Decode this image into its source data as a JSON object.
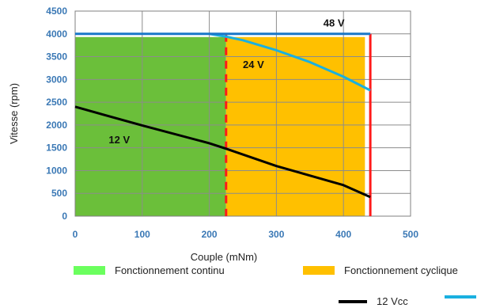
{
  "chart_data": {
    "type": "line",
    "xlabel": "Couple (mNm)",
    "ylabel": "Vitesse (rpm)",
    "xlim": [
      0,
      500
    ],
    "ylim": [
      0,
      4500
    ],
    "xticks": [
      0,
      100,
      200,
      300,
      400,
      500
    ],
    "yticks": [
      0,
      500,
      1000,
      1500,
      2000,
      2500,
      3000,
      3500,
      4000,
      4500
    ],
    "grid": true,
    "regions": [
      {
        "label": "Fonctionnement continu",
        "x": [
          0,
          225
        ],
        "y": [
          0,
          3930
        ],
        "color": "#6bbf3a"
      },
      {
        "label": "Fonctionnement cyclique",
        "x": [
          225,
          432
        ],
        "y": [
          0,
          3930
        ],
        "color": "#ffc000"
      }
    ],
    "limits": [
      {
        "x": 225,
        "style": "dashed",
        "color": "#ff1a1a"
      },
      {
        "x": 440,
        "style": "solid",
        "color": "#ff1a1a"
      }
    ],
    "series": [
      {
        "name": "12 Vcc",
        "label": "12 V",
        "color": "#000000",
        "x": [
          0,
          100,
          200,
          225,
          300,
          400,
          440
        ],
        "y": [
          2400,
          1990,
          1600,
          1480,
          1100,
          680,
          420
        ]
      },
      {
        "label": "24 V",
        "color": "#1ab0e0",
        "x": [
          200,
          225,
          250,
          300,
          350,
          400,
          440
        ],
        "y": [
          4000,
          3940,
          3860,
          3640,
          3380,
          3060,
          2760
        ]
      },
      {
        "label": "48 V",
        "color": "#1a78c8",
        "x": [
          0,
          100,
          200,
          300,
          400,
          440
        ],
        "y": [
          4000,
          4000,
          4000,
          4000,
          4000,
          4000
        ]
      }
    ],
    "annotations": [
      {
        "text": "48 V",
        "x": 370,
        "y": 4160
      },
      {
        "text": "24 V",
        "x": 250,
        "y": 3250
      },
      {
        "text": "12 V",
        "x": 50,
        "y": 1600
      }
    ],
    "legend": {
      "position": "bottom",
      "items": [
        {
          "label": "Fonctionnement continu",
          "color": "#6bff5e",
          "kind": "box"
        },
        {
          "label": "Fonctionnement cyclique",
          "color": "#ffc000",
          "kind": "box"
        },
        {
          "label": "12 Vcc",
          "color": "#000000",
          "kind": "line"
        },
        {
          "label": "",
          "color": "#1ab0e0",
          "kind": "line"
        }
      ]
    }
  }
}
